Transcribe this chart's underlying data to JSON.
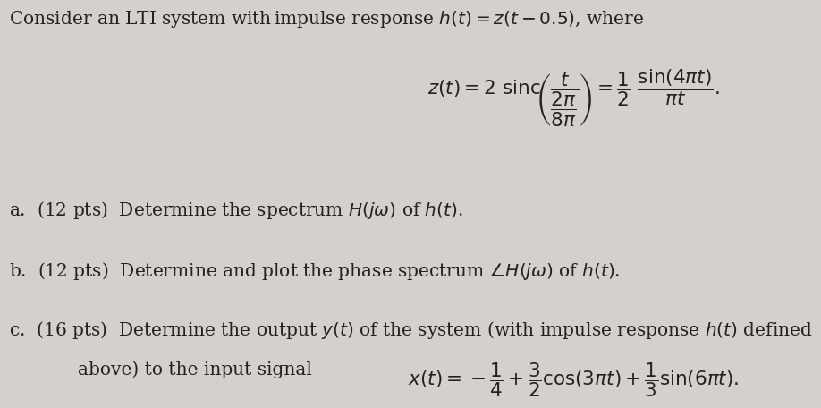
{
  "background_color": "#d4d0cb",
  "text_color": "#222222",
  "fontsize_main": 14.5,
  "fontsize_formula": 15.5,
  "line1": "Consider an LTI system with$\\,$impulse response $h(t) = z(t-0.5)$, where",
  "formula_z": "$z(t) = 2\\ \\mathrm{sinc}\\!\\left(\\dfrac{\\;t\\;}{\\dfrac{2\\pi}{8\\pi}}\\right) = \\dfrac{1}{2}\\ \\dfrac{\\sin(4\\pi t)}{\\pi t}.$",
  "part_a": "a.  (12 pts)  Determine the spectrum $H(j\\omega)$ of $h(t)$.",
  "part_b": "b.  (12 pts)  Determine and plot the phase spectrum $\\angle H(j\\omega)$ of $h(t)$.",
  "part_c1": "c.  (16 pts)  Determine the output $y(t)$ of the system (with impulse response $h(t)$ defined",
  "part_c2": "above) to the input signal",
  "formula_x": "$x(t) = -\\dfrac{1}{4} + \\dfrac{3}{2}\\cos(3\\pi t) + \\dfrac{1}{3}\\sin(6\\pi t).$",
  "indent_c2": 0.075
}
